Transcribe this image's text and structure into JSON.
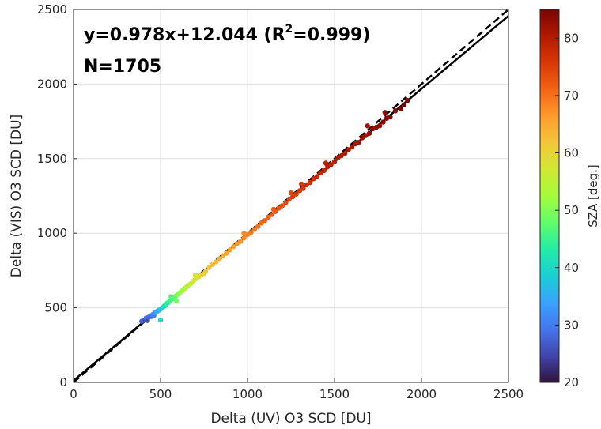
{
  "chart_data": {
    "type": "scatter",
    "title": "",
    "xlabel": "Delta (UV) O3 SCD [DU]",
    "ylabel": "Delta (VIS) O3 SCD [DU]",
    "xlim": [
      0,
      2500
    ],
    "ylim": [
      0,
      2500
    ],
    "xticks": [
      0,
      500,
      1000,
      1500,
      2000,
      2500
    ],
    "yticks": [
      0,
      500,
      1000,
      1500,
      2000,
      2500
    ],
    "grid": true,
    "annotations": {
      "equation_prefix": "y=0.978x+12.044 (R",
      "equation_sup": "2",
      "equation_suffix": "=0.999)",
      "n": "N=1705"
    },
    "fit_line": {
      "slope": 0.978,
      "intercept": 12.044,
      "style": "solid",
      "color": "#000000"
    },
    "one_to_one_line": {
      "slope": 1,
      "intercept": 0,
      "style": "dashed",
      "color": "#000000"
    },
    "colorbar": {
      "label": "SZA [deg.]",
      "range": [
        20,
        85
      ],
      "ticks": [
        20,
        30,
        40,
        50,
        60,
        70,
        80
      ],
      "colormap": [
        "#30123b",
        "#4145ab",
        "#4675ed",
        "#39a2fc",
        "#1bcfd4",
        "#24eca6",
        "#61fc6c",
        "#a4fc3b",
        "#d1e834",
        "#f3c63a",
        "#fe9b2d",
        "#f36315",
        "#d93806",
        "#b11901",
        "#7a0402"
      ]
    },
    "series": [
      {
        "marker": "filled-circle",
        "color_by": "sza",
        "points": [
          {
            "x": 392,
            "y": 410,
            "sza": 27
          },
          {
            "x": 402,
            "y": 418,
            "sza": 28
          },
          {
            "x": 410,
            "y": 420,
            "sza": 26
          },
          {
            "x": 418,
            "y": 432,
            "sza": 29
          },
          {
            "x": 425,
            "y": 415,
            "sza": 25
          },
          {
            "x": 432,
            "y": 438,
            "sza": 28
          },
          {
            "x": 440,
            "y": 445,
            "sza": 30
          },
          {
            "x": 448,
            "y": 442,
            "sza": 29
          },
          {
            "x": 455,
            "y": 455,
            "sza": 31
          },
          {
            "x": 462,
            "y": 448,
            "sza": 30
          },
          {
            "x": 470,
            "y": 468,
            "sza": 33
          },
          {
            "x": 478,
            "y": 472,
            "sza": 34
          },
          {
            "x": 485,
            "y": 480,
            "sza": 35
          },
          {
            "x": 492,
            "y": 485,
            "sza": 36
          },
          {
            "x": 500,
            "y": 418,
            "sza": 40
          },
          {
            "x": 505,
            "y": 495,
            "sza": 38
          },
          {
            "x": 515,
            "y": 505,
            "sza": 40
          },
          {
            "x": 522,
            "y": 512,
            "sza": 41
          },
          {
            "x": 530,
            "y": 520,
            "sza": 42
          },
          {
            "x": 538,
            "y": 530,
            "sza": 43
          },
          {
            "x": 545,
            "y": 535,
            "sza": 44
          },
          {
            "x": 555,
            "y": 548,
            "sza": 45
          },
          {
            "x": 565,
            "y": 556,
            "sza": 46
          },
          {
            "x": 575,
            "y": 565,
            "sza": 47
          },
          {
            "x": 585,
            "y": 575,
            "sza": 48
          },
          {
            "x": 592,
            "y": 545,
            "sza": 49
          },
          {
            "x": 600,
            "y": 590,
            "sza": 50
          },
          {
            "x": 612,
            "y": 602,
            "sza": 51
          },
          {
            "x": 625,
            "y": 615,
            "sza": 52
          },
          {
            "x": 638,
            "y": 628,
            "sza": 53
          },
          {
            "x": 650,
            "y": 640,
            "sza": 54
          },
          {
            "x": 662,
            "y": 652,
            "sza": 55
          },
          {
            "x": 675,
            "y": 662,
            "sza": 56
          },
          {
            "x": 690,
            "y": 680,
            "sza": 57
          },
          {
            "x": 705,
            "y": 695,
            "sza": 58
          },
          {
            "x": 720,
            "y": 708,
            "sza": 59
          },
          {
            "x": 735,
            "y": 722,
            "sza": 60
          },
          {
            "x": 750,
            "y": 730,
            "sza": 60
          },
          {
            "x": 760,
            "y": 745,
            "sza": 61
          },
          {
            "x": 780,
            "y": 770,
            "sza": 62
          },
          {
            "x": 800,
            "y": 790,
            "sza": 63
          },
          {
            "x": 820,
            "y": 808,
            "sza": 63
          },
          {
            "x": 840,
            "y": 830,
            "sza": 64
          },
          {
            "x": 860,
            "y": 850,
            "sza": 65
          },
          {
            "x": 880,
            "y": 866,
            "sza": 65
          },
          {
            "x": 900,
            "y": 888,
            "sza": 66
          },
          {
            "x": 920,
            "y": 910,
            "sza": 66
          },
          {
            "x": 940,
            "y": 930,
            "sza": 67
          },
          {
            "x": 960,
            "y": 945,
            "sza": 67
          },
          {
            "x": 980,
            "y": 968,
            "sza": 68
          },
          {
            "x": 1000,
            "y": 990,
            "sza": 68
          },
          {
            "x": 1020,
            "y": 1005,
            "sza": 69
          },
          {
            "x": 1040,
            "y": 1025,
            "sza": 69
          },
          {
            "x": 1060,
            "y": 1045,
            "sza": 70
          },
          {
            "x": 1080,
            "y": 1068,
            "sza": 70
          },
          {
            "x": 1100,
            "y": 1085,
            "sza": 71
          },
          {
            "x": 1120,
            "y": 1108,
            "sza": 71
          },
          {
            "x": 1140,
            "y": 1125,
            "sza": 72
          },
          {
            "x": 1160,
            "y": 1145,
            "sza": 72
          },
          {
            "x": 1180,
            "y": 1168,
            "sza": 73
          },
          {
            "x": 1200,
            "y": 1185,
            "sza": 73
          },
          {
            "x": 1220,
            "y": 1205,
            "sza": 74
          },
          {
            "x": 1240,
            "y": 1230,
            "sza": 74
          },
          {
            "x": 1260,
            "y": 1245,
            "sza": 75
          },
          {
            "x": 1280,
            "y": 1262,
            "sza": 75
          },
          {
            "x": 1300,
            "y": 1285,
            "sza": 76
          },
          {
            "x": 1320,
            "y": 1300,
            "sza": 76
          },
          {
            "x": 1340,
            "y": 1325,
            "sza": 77
          },
          {
            "x": 1360,
            "y": 1340,
            "sza": 77
          },
          {
            "x": 1380,
            "y": 1365,
            "sza": 77
          },
          {
            "x": 1400,
            "y": 1380,
            "sza": 78
          },
          {
            "x": 1420,
            "y": 1405,
            "sza": 78
          },
          {
            "x": 1440,
            "y": 1420,
            "sza": 78
          },
          {
            "x": 1460,
            "y": 1445,
            "sza": 79
          },
          {
            "x": 1480,
            "y": 1460,
            "sza": 79
          },
          {
            "x": 1500,
            "y": 1480,
            "sza": 79
          },
          {
            "x": 1520,
            "y": 1505,
            "sza": 80
          },
          {
            "x": 1540,
            "y": 1520,
            "sza": 80
          },
          {
            "x": 1560,
            "y": 1535,
            "sza": 80
          },
          {
            "x": 1580,
            "y": 1560,
            "sza": 81
          },
          {
            "x": 1600,
            "y": 1578,
            "sza": 81
          },
          {
            "x": 1620,
            "y": 1600,
            "sza": 81
          },
          {
            "x": 1640,
            "y": 1610,
            "sza": 82
          },
          {
            "x": 1660,
            "y": 1640,
            "sza": 82
          },
          {
            "x": 1680,
            "y": 1655,
            "sza": 82
          },
          {
            "x": 1700,
            "y": 1670,
            "sza": 83
          },
          {
            "x": 1720,
            "y": 1700,
            "sza": 83
          },
          {
            "x": 1740,
            "y": 1710,
            "sza": 83
          },
          {
            "x": 1760,
            "y": 1720,
            "sza": 83
          },
          {
            "x": 1780,
            "y": 1745,
            "sza": 84
          },
          {
            "x": 1800,
            "y": 1770,
            "sza": 84
          },
          {
            "x": 1820,
            "y": 1780,
            "sza": 84
          },
          {
            "x": 1850,
            "y": 1820,
            "sza": 84
          },
          {
            "x": 1880,
            "y": 1835,
            "sza": 85
          },
          {
            "x": 1900,
            "y": 1860,
            "sza": 85
          },
          {
            "x": 1920,
            "y": 1890,
            "sza": 85
          },
          {
            "x": 1250,
            "y": 1270,
            "sza": 74
          },
          {
            "x": 1310,
            "y": 1330,
            "sza": 76
          },
          {
            "x": 1450,
            "y": 1470,
            "sza": 79
          },
          {
            "x": 1690,
            "y": 1720,
            "sza": 82
          },
          {
            "x": 1790,
            "y": 1810,
            "sza": 84
          },
          {
            "x": 1150,
            "y": 1160,
            "sza": 72
          },
          {
            "x": 980,
            "y": 1000,
            "sza": 68
          },
          {
            "x": 700,
            "y": 720,
            "sza": 57
          },
          {
            "x": 560,
            "y": 575,
            "sza": 46
          }
        ]
      }
    ]
  }
}
